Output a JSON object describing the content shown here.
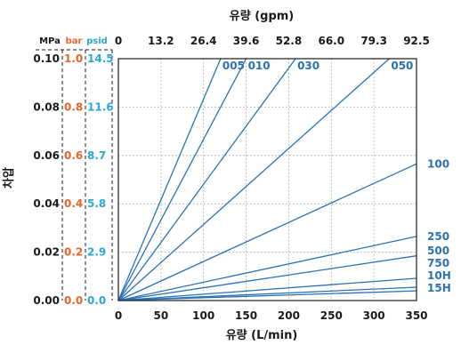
{
  "chart_data": {
    "type": "line",
    "xlabel": "유량 (L/min)",
    "x2label": "유량 (gpm)",
    "ylabel": "차압",
    "xlim": [
      0,
      350
    ],
    "ylim": [
      0,
      0.1
    ],
    "grid": true,
    "x_ticks": [
      0,
      50,
      100,
      150,
      200,
      250,
      300,
      350
    ],
    "x2_ticks": [
      "0",
      "13.2",
      "26.4",
      "39.6",
      "52.8",
      "66.0",
      "79.3",
      "92.5"
    ],
    "y_units": [
      "MPa",
      "bar",
      "psid"
    ],
    "y_ticks": {
      "MPa": [
        "0.00",
        "0.02",
        "0.04",
        "0.06",
        "0.08",
        "0.10"
      ],
      "bar": [
        "0.0",
        "0.2",
        "0.4",
        "0.6",
        "0.8",
        "1.0"
      ],
      "psid": [
        "0.0",
        "2.9",
        "5.8",
        "8.7",
        "11.6",
        "14.5"
      ]
    },
    "y_tick_values": [
      0,
      0.02,
      0.04,
      0.06,
      0.08,
      0.1
    ],
    "series": [
      {
        "name": "005",
        "x": [
          0,
          120
        ],
        "y": [
          0,
          0.1
        ]
      },
      {
        "name": "010",
        "x": [
          0,
          150
        ],
        "y": [
          0,
          0.1
        ]
      },
      {
        "name": "030",
        "x": [
          0,
          208
        ],
        "y": [
          0,
          0.1
        ]
      },
      {
        "name": "050",
        "x": [
          0,
          318
        ],
        "y": [
          0,
          0.1
        ]
      },
      {
        "name": "100",
        "x": [
          0,
          350
        ],
        "y": [
          0,
          0.0565
        ]
      },
      {
        "name": "250",
        "x": [
          0,
          350
        ],
        "y": [
          0,
          0.0265
        ]
      },
      {
        "name": "500",
        "x": [
          0,
          350
        ],
        "y": [
          0,
          0.0185
        ]
      },
      {
        "name": "750",
        "x": [
          0,
          350
        ],
        "y": [
          0,
          0.0092
        ]
      },
      {
        "name": "10H",
        "x": [
          0,
          350
        ],
        "y": [
          0,
          0.0055
        ]
      },
      {
        "name": "15H",
        "x": [
          0,
          350
        ],
        "y": [
          0,
          0.004
        ]
      }
    ],
    "colors": {
      "line": "#2a72b5",
      "bar_text": "#e8642a",
      "psid_text": "#2aa8d6",
      "text": "#1a1a1a"
    }
  }
}
